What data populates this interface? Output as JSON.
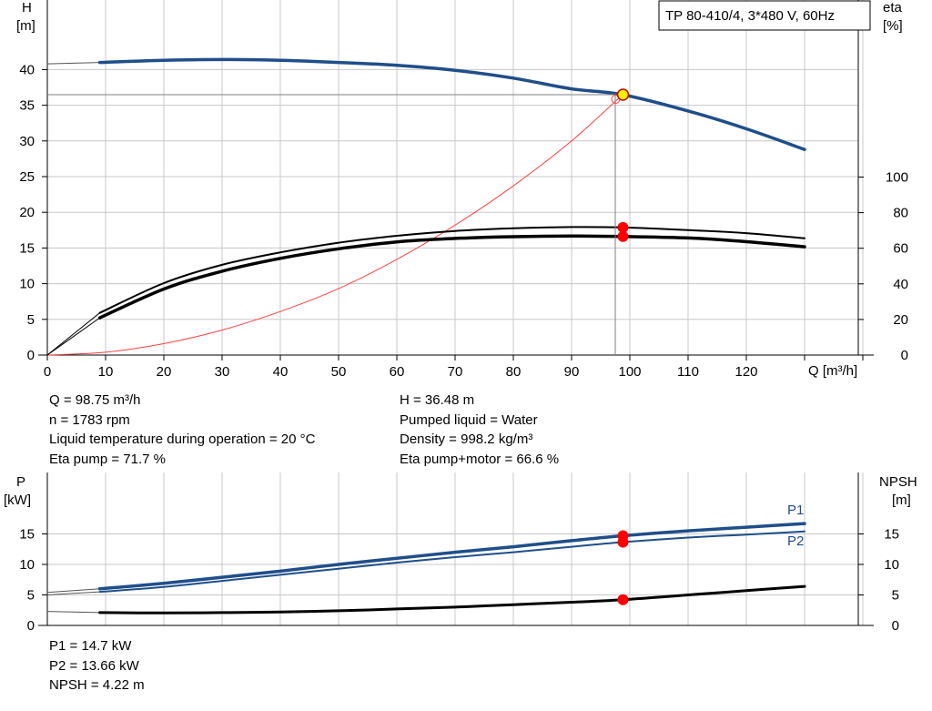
{
  "title_box": "TP 80-410/4, 3*480 V, 60Hz",
  "top_chart": {
    "left_axis_label": [
      "H",
      "[m]"
    ],
    "right_axis_label": [
      "eta",
      "[%]"
    ],
    "x_axis_label": "Q [m³/h]"
  },
  "bottom_chart": {
    "left_axis_label": [
      "P",
      "[kW]"
    ],
    "right_axis_label": [
      "NPSH",
      "[m]"
    ],
    "series_labels": {
      "p1": "P1",
      "p2": "P2"
    }
  },
  "info_top_left": [
    "Q = 98.75 m³/h",
    "n = 1783 rpm",
    "Liquid temperature during operation = 20 °C",
    "Eta pump = 71.7 %"
  ],
  "info_top_right": [
    "H = 36.48 m",
    "Pumped liquid = Water",
    "Density = 998.2 kg/m³",
    "Eta pump+motor = 66.6 %"
  ],
  "info_bottom": [
    "P1 = 14.7 kW",
    "P2 = 13.66 kW",
    "NPSH = 4.22 m"
  ],
  "colors": {
    "head": "#1f4e8a",
    "eta": "#000000",
    "system": "#ff4040",
    "p1": "#1f4e8a",
    "p2": "#1f4e8a",
    "npsh": "#000000",
    "duty_point": "#ff0000",
    "duty_point_head": "#ffee00",
    "grid": "#c8c8c8"
  },
  "chart_data": [
    {
      "type": "line",
      "title": "TP 80-410/4, 3*480 V, 60Hz",
      "xlabel": "Q [m³/h]",
      "ylabel": "H [m]",
      "y2label": "eta [%]",
      "xlim": [
        0,
        140
      ],
      "ylim": [
        0,
        45
      ],
      "y2lim": [
        0,
        100
      ],
      "x_ticks": [
        0,
        10,
        20,
        30,
        40,
        50,
        60,
        70,
        80,
        90,
        100,
        110,
        120
      ],
      "y_ticks": [
        0,
        5,
        10,
        15,
        20,
        25,
        30,
        35,
        40
      ],
      "y2_ticks": [
        0,
        20,
        40,
        60,
        80,
        100
      ],
      "grid": true,
      "operating_point": {
        "Q": 98.75,
        "H": 36.48
      },
      "series": [
        {
          "axis": "left",
          "style": "head",
          "x": [
            0,
            9,
            20,
            30,
            40,
            50,
            60,
            70,
            80,
            90,
            98.75,
            110,
            120,
            130
          ],
          "y": [
            40.8,
            41.0,
            41.3,
            41.4,
            41.3,
            41.0,
            40.6,
            39.9,
            38.8,
            37.3,
            36.48,
            34.2,
            31.7,
            28.8
          ]
        },
        {
          "axis": "right",
          "style": "eta-upper",
          "x": [
            0,
            9,
            20,
            30,
            40,
            50,
            60,
            70,
            80,
            90,
            98.75,
            110,
            120,
            130
          ],
          "y": [
            0,
            23.7,
            40.4,
            50.7,
            57.7,
            63.1,
            67.0,
            69.7,
            71.2,
            71.9,
            71.7,
            70.2,
            68.5,
            65.6
          ]
        },
        {
          "axis": "right",
          "style": "eta-lower",
          "x": [
            0,
            9,
            20,
            30,
            40,
            50,
            60,
            70,
            80,
            90,
            98.75,
            110,
            120,
            130
          ],
          "y": [
            0,
            20.9,
            37.1,
            47.1,
            54.3,
            59.7,
            63.6,
            65.5,
            66.5,
            66.9,
            66.6,
            65.8,
            63.7,
            60.8
          ]
        },
        {
          "axis": "left",
          "style": "system",
          "x": [
            0,
            10,
            20,
            30,
            40,
            50,
            60,
            70,
            80,
            90,
            98.75
          ],
          "y": [
            0,
            0.4,
            1.6,
            3.5,
            6.1,
            9.3,
            13.4,
            18.2,
            23.7,
            30.0,
            36.48
          ]
        }
      ]
    },
    {
      "type": "line",
      "ylabel": "P [kW]",
      "y2label": "NPSH [m]",
      "xlim": [
        0,
        140
      ],
      "ylim": [
        0,
        20
      ],
      "y2lim": [
        0,
        20
      ],
      "y_ticks": [
        0,
        5,
        10,
        15
      ],
      "y2_ticks": [
        0,
        5,
        10,
        15
      ],
      "grid": true,
      "series": [
        {
          "name": "P1",
          "axis": "left",
          "x": [
            0,
            9,
            20,
            30,
            40,
            50,
            60,
            70,
            80,
            90,
            98.75,
            110,
            120,
            130
          ],
          "y": [
            5.4,
            6.0,
            6.9,
            7.9,
            8.9,
            10.0,
            11.0,
            12.0,
            12.9,
            13.9,
            14.7,
            15.5,
            16.1,
            16.7
          ]
        },
        {
          "name": "P2",
          "axis": "left",
          "x": [
            0,
            9,
            20,
            30,
            40,
            50,
            60,
            70,
            80,
            90,
            98.75,
            110,
            120,
            130
          ],
          "y": [
            5.0,
            5.5,
            6.3,
            7.3,
            8.3,
            9.3,
            10.3,
            11.2,
            12.0,
            12.9,
            13.66,
            14.4,
            14.9,
            15.4
          ]
        },
        {
          "axis": "right",
          "style": "npsh",
          "x": [
            0,
            9,
            20,
            30,
            40,
            50,
            60,
            70,
            80,
            90,
            98.75,
            110,
            120,
            130
          ],
          "y": [
            2.3,
            2.1,
            2.05,
            2.1,
            2.2,
            2.4,
            2.7,
            3.0,
            3.4,
            3.8,
            4.22,
            5.0,
            5.7,
            6.4
          ]
        }
      ]
    }
  ]
}
